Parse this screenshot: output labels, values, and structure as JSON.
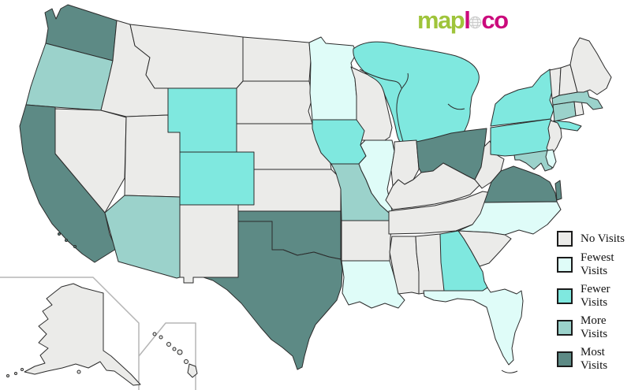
{
  "logo": {
    "part_green": "map",
    "part_pink_l": "l",
    "part_pink_co": "co",
    "globe_icon": "globe-icon"
  },
  "legend": {
    "items": [
      {
        "label": "No Visits",
        "level": "no"
      },
      {
        "label": "Fewest Visits",
        "level": "fewest"
      },
      {
        "label": "Fewer Visits",
        "level": "fewer"
      },
      {
        "label": "More Visits",
        "level": "more"
      },
      {
        "label": "Most Visits",
        "level": "most"
      }
    ]
  },
  "colors": {
    "no": "#ebebe9",
    "fewest": "#dffcf8",
    "fewer": "#7fe8df",
    "more": "#9bd2cb",
    "most": "#5d8a85",
    "outline": "#2b2b2b",
    "inset_line": "#b5b5b5",
    "logo_green": "#9fc43b",
    "logo_pink": "#cb0a7c",
    "background": "#ffffff",
    "legend_text": "#111111"
  },
  "map": {
    "title": "US states visited choropleth",
    "state_levels": {
      "WA": "most",
      "CA": "most",
      "TX": "most",
      "OK": "most",
      "OH": "most",
      "VA": "most",
      "OR": "more",
      "AZ": "more",
      "MO": "more",
      "MA": "more",
      "CT": "more",
      "MD": "more",
      "WY": "fewer",
      "CO": "fewer",
      "IA": "fewer",
      "MI": "fewer",
      "NY": "fewer",
      "PA": "fewer",
      "GA": "fewer",
      "MN": "fewest",
      "IL": "fewest",
      "LA": "fewest",
      "FL": "fewest",
      "NC": "fewest",
      "DE": "fewest",
      "MT": "no",
      "ID": "no",
      "NV": "no",
      "UT": "no",
      "NM": "no",
      "ND": "no",
      "SD": "no",
      "NE": "no",
      "KS": "no",
      "WI": "no",
      "IN": "no",
      "KY": "no",
      "TN": "no",
      "AR": "no",
      "MS": "no",
      "AL": "no",
      "SC": "no",
      "WV": "no",
      "NJ": "no",
      "RI": "no",
      "VT": "no",
      "NH": "no",
      "ME": "no",
      "AK": "no",
      "HI": "no"
    }
  }
}
